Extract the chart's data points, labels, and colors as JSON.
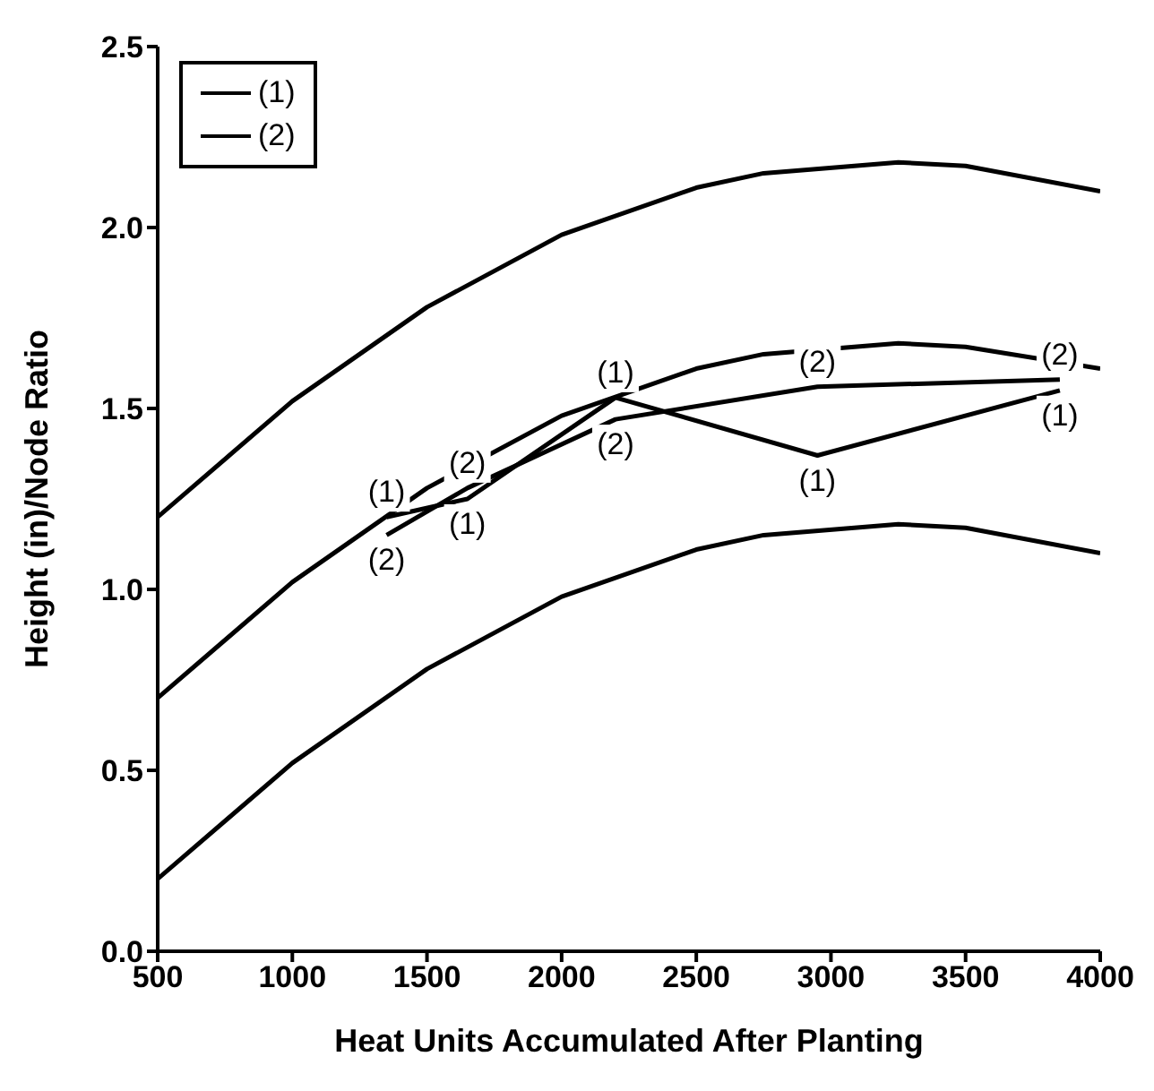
{
  "chart_data": {
    "type": "line",
    "xlabel": "Heat Units Accumulated After Planting",
    "ylabel": "Height (in)/Node Ratio",
    "xlim": [
      500,
      4000
    ],
    "xticks": [
      500,
      1000,
      1500,
      2000,
      2500,
      3000,
      3500,
      4000
    ],
    "ylim": [
      0,
      2.5
    ],
    "yticks": [
      {
        "value": 0,
        "label": "0.0"
      },
      0.5,
      {
        "value": 1,
        "label": "1.0"
      },
      1.5,
      {
        "value": 2,
        "label": "2.0"
      },
      2.5
    ],
    "grid": false,
    "legend": "top left",
    "series": [
      {
        "name": "(1)",
        "color": "#000000",
        "x": [
          1350,
          1650,
          2200,
          2950,
          3850
        ],
        "values": [
          1.2,
          1.25,
          1.53,
          1.37,
          1.55
        ]
      },
      {
        "name": "(2)",
        "color": "#000000",
        "x": [
          1350,
          1650,
          2200,
          2950,
          3850
        ],
        "values": [
          1.15,
          1.28,
          1.47,
          1.56,
          1.58
        ]
      },
      {
        "color": "#000000",
        "marker": "none",
        "x": [
          500,
          1000,
          1500,
          2000,
          2500,
          2750,
          3250,
          3500,
          4000
        ],
        "values": [
          1.2,
          1.52,
          1.78,
          1.98,
          2.11,
          2.15,
          2.18,
          2.17,
          2.1
        ]
      },
      {
        "color": "#000000",
        "marker": "none",
        "x": [
          500,
          1000,
          1500,
          2000,
          2500,
          2750,
          3250,
          3500,
          4000
        ],
        "values": [
          0.7,
          1.02,
          1.28,
          1.48,
          1.61,
          1.65,
          1.68,
          1.67,
          1.61
        ]
      },
      {
        "color": "#000000",
        "marker": "none",
        "x": [
          500,
          1000,
          1500,
          2000,
          2500,
          2750,
          3250,
          3500,
          4000
        ],
        "values": [
          0.2,
          0.52,
          0.78,
          0.98,
          1.11,
          1.15,
          1.18,
          1.17,
          1.1
        ]
      }
    ]
  }
}
